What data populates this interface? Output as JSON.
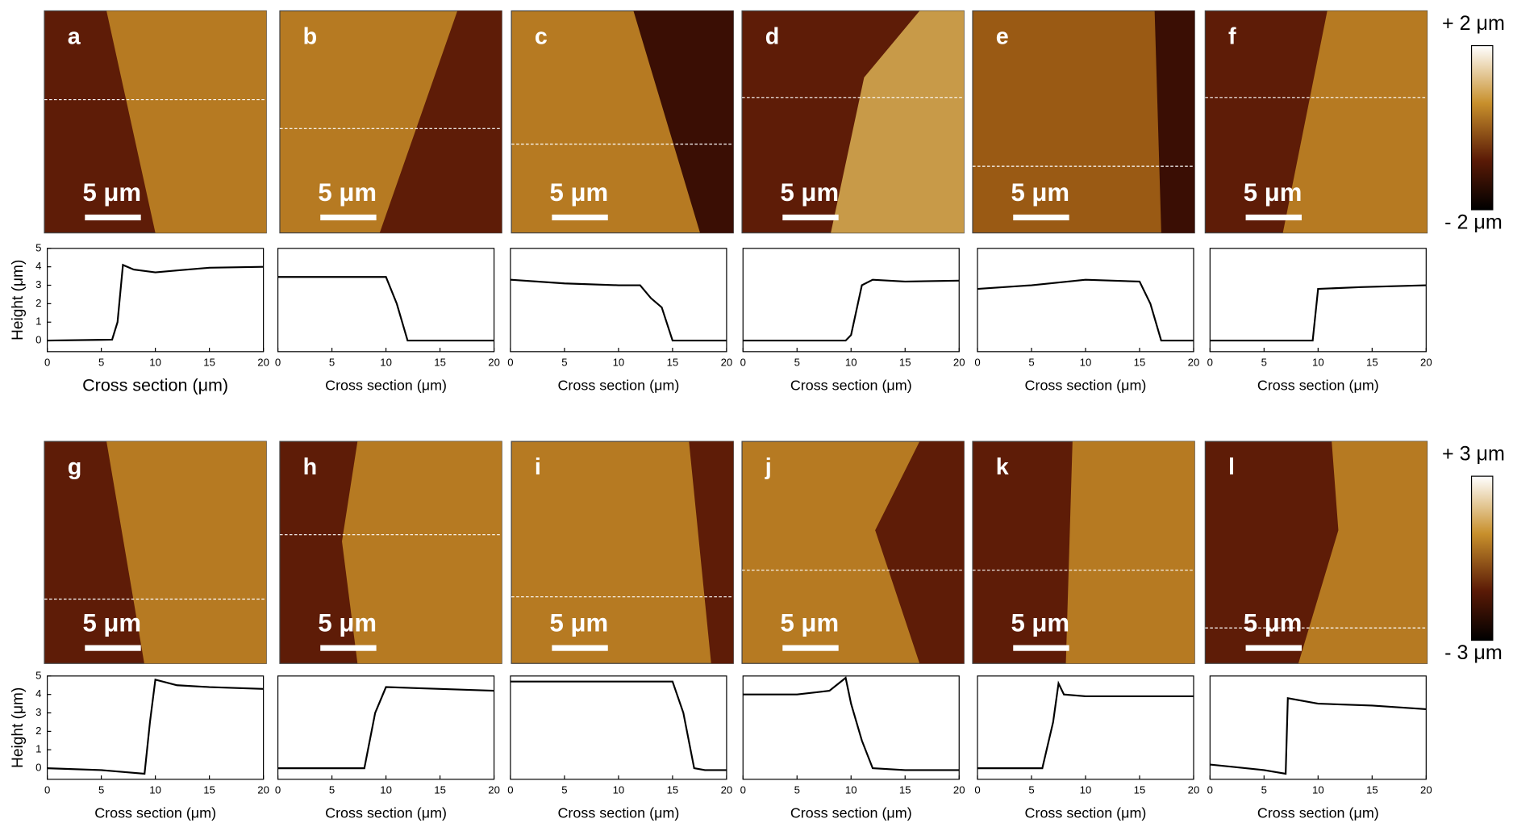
{
  "chart_data": [
    {
      "type": "line",
      "label": "a",
      "scale_bar": "5 μm",
      "x": [
        0,
        6,
        6.5,
        7,
        8,
        10,
        12,
        15,
        20
      ],
      "series": [
        {
          "color": "#000000",
          "values": [
            0,
            0.05,
            1,
            4.1,
            3.85,
            3.7,
            3.8,
            3.95,
            4
          ]
        }
      ],
      "xlim": [
        0,
        20
      ],
      "xticks": [
        0,
        5,
        10,
        15,
        20
      ],
      "ylim": [
        -0.6,
        5
      ],
      "yticks": [
        0,
        1,
        2,
        3,
        4,
        5
      ],
      "xlabel": "Cross section (μm)",
      "ylabel": "Height (μm)"
    },
    {
      "type": "line",
      "label": "b",
      "scale_bar": "5 μm",
      "x": [
        0,
        5,
        10,
        11,
        12,
        15,
        20
      ],
      "series": [
        {
          "color": "#000000",
          "values": [
            3.45,
            3.45,
            3.45,
            2,
            0,
            0,
            0
          ]
        }
      ],
      "xlim": [
        0,
        20
      ],
      "xticks": [
        0,
        5,
        10,
        15,
        20
      ],
      "ylim": [
        -0.6,
        5
      ],
      "xlabel": "Cross section (μm)"
    },
    {
      "type": "line",
      "label": "c",
      "scale_bar": "5 μm",
      "x": [
        0,
        5,
        10,
        12,
        13,
        14,
        15,
        20
      ],
      "series": [
        {
          "color": "#000000",
          "values": [
            3.3,
            3.1,
            3.0,
            3.0,
            2.3,
            1.8,
            0,
            0
          ]
        }
      ],
      "xlim": [
        0,
        20
      ],
      "xticks": [
        0,
        5,
        10,
        15,
        20
      ],
      "ylim": [
        -0.6,
        5
      ],
      "xlabel": "Cross section (μm)"
    },
    {
      "type": "line",
      "label": "d",
      "scale_bar": "5 μm",
      "x": [
        0,
        9.5,
        10,
        11,
        12,
        15,
        20
      ],
      "series": [
        {
          "color": "#000000",
          "values": [
            0,
            0,
            0.3,
            3.0,
            3.3,
            3.2,
            3.25
          ]
        }
      ],
      "xlim": [
        0,
        20
      ],
      "xticks": [
        0,
        5,
        10,
        15,
        20
      ],
      "ylim": [
        -0.6,
        5
      ],
      "xlabel": "Cross section (μm)"
    },
    {
      "type": "line",
      "label": "e",
      "scale_bar": "5 μm",
      "x": [
        0,
        5,
        10,
        15,
        16,
        17,
        20
      ],
      "series": [
        {
          "color": "#000000",
          "values": [
            2.8,
            3.0,
            3.3,
            3.2,
            2.0,
            0,
            0
          ]
        }
      ],
      "xlim": [
        0,
        20
      ],
      "xticks": [
        0,
        5,
        10,
        15,
        20
      ],
      "ylim": [
        -0.6,
        5
      ],
      "xlabel": "Cross section (μm)"
    },
    {
      "type": "line",
      "label": "f",
      "scale_bar": "5 μm",
      "x": [
        0,
        9.5,
        10,
        14,
        20
      ],
      "series": [
        {
          "color": "#000000",
          "values": [
            0,
            0,
            2.8,
            2.9,
            3.0
          ]
        }
      ],
      "xlim": [
        0,
        20
      ],
      "xticks": [
        0,
        5,
        10,
        15,
        20
      ],
      "ylim": [
        -0.6,
        5
      ],
      "xlabel": "Cross section (μm)"
    },
    {
      "type": "line",
      "label": "g",
      "scale_bar": "5 μm",
      "x": [
        0,
        5,
        9,
        9.5,
        10,
        12,
        15,
        20
      ],
      "series": [
        {
          "color": "#000000",
          "values": [
            0,
            -0.1,
            -0.3,
            2.5,
            4.8,
            4.5,
            4.4,
            4.3
          ]
        }
      ],
      "xlim": [
        0,
        20
      ],
      "xticks": [
        0,
        5,
        10,
        15,
        20
      ],
      "ylim": [
        -0.6,
        5
      ],
      "yticks": [
        0,
        1,
        2,
        3,
        4,
        5
      ],
      "xlabel": "Cross section (μm)",
      "ylabel": "Height (μm)"
    },
    {
      "type": "line",
      "label": "h",
      "scale_bar": "5 μm",
      "x": [
        0,
        8,
        9,
        10,
        15,
        20
      ],
      "series": [
        {
          "color": "#000000",
          "values": [
            0,
            0,
            3,
            4.4,
            4.3,
            4.2
          ]
        }
      ],
      "xlim": [
        0,
        20
      ],
      "xticks": [
        0,
        5,
        10,
        15,
        20
      ],
      "ylim": [
        -0.6,
        5
      ],
      "xlabel": "Cross section (μm)"
    },
    {
      "type": "line",
      "label": "i",
      "scale_bar": "5 μm",
      "x": [
        0,
        10,
        15,
        16,
        17,
        18,
        20
      ],
      "series": [
        {
          "color": "#000000",
          "values": [
            4.7,
            4.7,
            4.7,
            3.0,
            0,
            -0.1,
            -0.1
          ]
        }
      ],
      "xlim": [
        0,
        20
      ],
      "xticks": [
        0,
        5,
        10,
        15,
        20
      ],
      "ylim": [
        -0.6,
        5
      ],
      "xlabel": "Cross section (μm)"
    },
    {
      "type": "line",
      "label": "j",
      "scale_bar": "5 μm",
      "x": [
        0,
        5,
        8,
        9.5,
        10,
        11,
        12,
        15,
        20
      ],
      "series": [
        {
          "color": "#000000",
          "values": [
            4.0,
            4.0,
            4.2,
            4.9,
            3.5,
            1.5,
            0,
            -0.1,
            -0.1
          ]
        }
      ],
      "xlim": [
        0,
        20
      ],
      "xticks": [
        0,
        5,
        10,
        15,
        20
      ],
      "ylim": [
        -0.6,
        5
      ],
      "xlabel": "Cross section (μm)"
    },
    {
      "type": "line",
      "label": "k",
      "scale_bar": "5 μm",
      "x": [
        0,
        6,
        7,
        7.5,
        8,
        10,
        15,
        20
      ],
      "series": [
        {
          "color": "#000000",
          "values": [
            0,
            0,
            2.5,
            4.6,
            4.0,
            3.9,
            3.9,
            3.9
          ]
        }
      ],
      "xlim": [
        0,
        20
      ],
      "xticks": [
        0,
        5,
        10,
        15,
        20
      ],
      "ylim": [
        -0.6,
        5
      ],
      "xlabel": "Cross section (μm)"
    },
    {
      "type": "line",
      "label": "l",
      "scale_bar": "5 μm",
      "x": [
        0,
        5,
        7,
        7.2,
        10,
        15,
        20
      ],
      "series": [
        {
          "color": "#000000",
          "values": [
            0.2,
            -0.1,
            -0.3,
            3.8,
            3.5,
            3.4,
            3.2
          ]
        }
      ],
      "xlim": [
        0,
        20
      ],
      "xticks": [
        0,
        5,
        10,
        15,
        20
      ],
      "ylim": [
        -0.6,
        5
      ],
      "xlabel": "Cross section (μm)"
    }
  ],
  "colorbars": [
    {
      "max": "+ 2 μm",
      "min": "- 2 μm"
    },
    {
      "max": "+ 3 μm",
      "min": "- 3 μm"
    }
  ]
}
